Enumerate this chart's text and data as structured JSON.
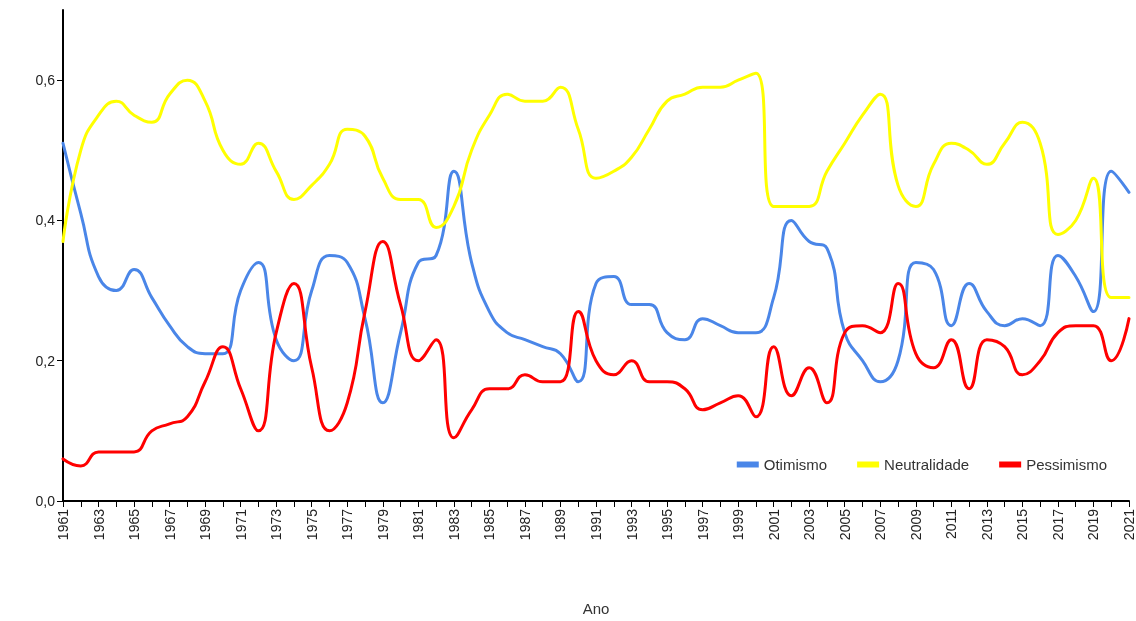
{
  "chart_data": {
    "type": "line",
    "xlabel": "Ano",
    "categories": [
      "1961",
      null,
      "1963",
      null,
      "1965",
      null,
      "1967",
      null,
      "1969",
      null,
      "1971",
      null,
      "1973",
      null,
      "1975",
      null,
      "1977",
      null,
      "1979",
      null,
      "1981",
      null,
      "1983",
      null,
      "1985",
      null,
      "1987",
      null,
      "1989",
      null,
      "1991",
      null,
      "1993",
      null,
      "1995",
      null,
      "1997",
      null,
      "1999",
      null,
      "2001",
      null,
      "2003",
      null,
      "2005",
      null,
      "2007",
      null,
      "2009",
      null,
      "2011",
      null,
      "2013",
      null,
      "2015",
      null,
      "2017",
      null,
      "2019",
      null,
      "2021"
    ],
    "series": [
      {
        "name": "Otimismo",
        "color": "#4a86e8",
        "values": [
          0.51,
          0.41,
          0.32,
          0.3,
          0.33,
          0.29,
          0.25,
          0.22,
          0.21,
          0.21,
          0.3,
          0.34,
          0.23,
          0.2,
          0.3,
          0.35,
          0.34,
          0.26,
          0.14,
          0.24,
          0.34,
          0.35,
          0.47,
          0.34,
          0.27,
          0.24,
          0.23,
          0.22,
          0.21,
          0.17,
          0.31,
          0.32,
          0.28,
          0.28,
          0.24,
          0.23,
          0.26,
          0.25,
          0.24,
          0.24,
          0.29,
          0.4,
          0.37,
          0.36,
          0.24,
          0.2,
          0.17,
          0.2,
          0.34,
          0.33,
          0.25,
          0.31,
          0.27,
          0.25,
          0.26,
          0.25,
          0.35,
          0.32,
          0.27,
          0.47,
          0.44
        ]
      },
      {
        "name": "Neutralidade",
        "color": "#ffff00",
        "values": [
          0.37,
          0.5,
          0.55,
          0.57,
          0.55,
          0.54,
          0.58,
          0.6,
          0.57,
          0.5,
          0.48,
          0.51,
          0.47,
          0.43,
          0.45,
          0.48,
          0.53,
          0.52,
          0.46,
          0.43,
          0.43,
          0.39,
          0.42,
          0.5,
          0.55,
          0.58,
          0.57,
          0.57,
          0.59,
          0.53,
          0.46,
          0.47,
          0.49,
          0.53,
          0.57,
          0.58,
          0.59,
          0.59,
          0.6,
          0.61,
          0.42,
          0.42,
          0.42,
          0.47,
          0.51,
          0.55,
          0.58,
          0.45,
          0.42,
          0.48,
          0.51,
          0.5,
          0.48,
          0.51,
          0.54,
          0.51,
          0.38,
          0.4,
          0.46,
          0.29,
          0.29
        ]
      },
      {
        "name": "Pessimismo",
        "color": "#ff0000",
        "values": [
          0.06,
          0.05,
          0.07,
          0.07,
          0.07,
          0.1,
          0.11,
          0.12,
          0.17,
          0.22,
          0.16,
          0.1,
          0.24,
          0.31,
          0.19,
          0.1,
          0.14,
          0.27,
          0.37,
          0.28,
          0.2,
          0.23,
          0.09,
          0.13,
          0.16,
          0.16,
          0.18,
          0.17,
          0.17,
          0.27,
          0.2,
          0.18,
          0.2,
          0.17,
          0.17,
          0.16,
          0.13,
          0.14,
          0.15,
          0.12,
          0.22,
          0.15,
          0.19,
          0.14,
          0.24,
          0.25,
          0.24,
          0.31,
          0.21,
          0.19,
          0.23,
          0.16,
          0.23,
          0.22,
          0.18,
          0.2,
          0.24,
          0.25,
          0.25,
          0.2,
          0.26
        ]
      }
    ],
    "ylim": [
      0,
      0.7
    ],
    "yticks": [
      {
        "value": 0,
        "label": "0,0"
      },
      {
        "value": 0.2,
        "label": "0,2"
      },
      {
        "value": 0.4,
        "label": "0,4"
      },
      {
        "value": 0.6,
        "label": "0,6"
      }
    ],
    "legend": "bottom right",
    "marker": "none",
    "line_style": "solid"
  }
}
